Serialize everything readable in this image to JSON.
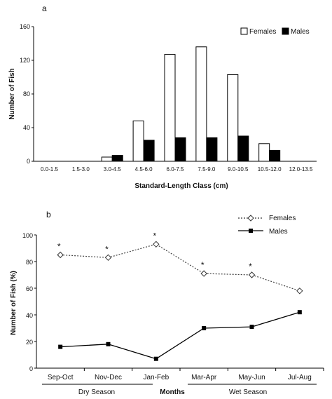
{
  "chart_data": [
    {
      "type": "bar",
      "panel_label": "a",
      "categories": [
        "0.0-1.5",
        "1.5-3.0",
        "3.0-4.5",
        "4.5-6.0",
        "6.0-7.5",
        "7.5-9.0",
        "9.0-10.5",
        "10.5-12.0",
        "12.0-13.5"
      ],
      "series": [
        {
          "name": "Females",
          "values": [
            0,
            0,
            5,
            48,
            127,
            136,
            103,
            21,
            0
          ],
          "color": "#ffffff"
        },
        {
          "name": "Males",
          "values": [
            0,
            0,
            7,
            25,
            28,
            28,
            30,
            13,
            0
          ],
          "color": "#000000"
        }
      ],
      "xlabel": "Standard-Length Class (cm)",
      "ylabel": "Number of Fish",
      "ylim": [
        0,
        160
      ],
      "yticks": [
        0,
        40,
        80,
        120,
        160
      ],
      "grid": false,
      "legend": "top-right"
    },
    {
      "type": "line",
      "panel_label": "b",
      "categories": [
        "Sep-Oct",
        "Nov-Dec",
        "Jan-Feb",
        "Mar-Apr",
        "May-Jun",
        "Jul-Aug"
      ],
      "series": [
        {
          "name": "Females",
          "values": [
            85,
            83,
            93,
            71,
            70,
            58
          ],
          "style": "dotted",
          "marker": "diamond-open"
        },
        {
          "name": "Males",
          "values": [
            16,
            18,
            7,
            30,
            31,
            42
          ],
          "style": "solid",
          "marker": "square-filled"
        }
      ],
      "significant_marker": "*",
      "significant_indices": [
        0,
        1,
        2,
        3,
        4
      ],
      "xlabel": "Months",
      "season_labels": [
        "Dry Season",
        "Wet Season"
      ],
      "ylabel": "Number of Fish (%)",
      "ylim": [
        0,
        100
      ],
      "yticks": [
        0,
        20,
        40,
        60,
        80,
        100
      ],
      "grid": false,
      "legend": "top-right"
    }
  ]
}
